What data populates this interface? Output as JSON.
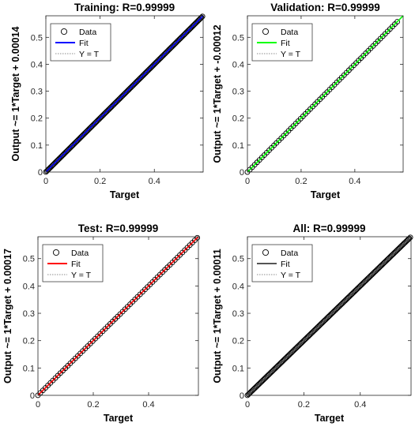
{
  "chart_data": [
    {
      "type": "scatter",
      "title": "Training: R=0.99999",
      "xlabel": "Target",
      "ylabel": "Output ~= 1*Target + 0.00014",
      "xlim": [
        0,
        0.58
      ],
      "ylim": [
        0,
        0.58
      ],
      "xticks": [
        "0",
        "0.2",
        "0.4"
      ],
      "yticks": [
        "0",
        "0.1",
        "0.2",
        "0.3",
        "0.4",
        "0.5"
      ],
      "fit": {
        "slope": 1,
        "intercept": 0.00014
      },
      "data_range": [
        0,
        0.58
      ],
      "fit_color": "#0000ff",
      "legend": [
        "Data",
        "Fit",
        "Y = T"
      ],
      "legend_position": "top-left",
      "data_marker": "open circle",
      "data_density": "dense"
    },
    {
      "type": "scatter",
      "title": "Validation: R=0.99999",
      "xlabel": "Target",
      "ylabel": "Output ~= 1*Target + -0.00012",
      "xlim": [
        0,
        0.58
      ],
      "ylim": [
        0,
        0.58
      ],
      "xticks": [
        "0",
        "0.2",
        "0.4"
      ],
      "yticks": [
        "0",
        "0.1",
        "0.2",
        "0.3",
        "0.4",
        "0.5"
      ],
      "fit": {
        "slope": 1,
        "intercept": -0.00012
      },
      "data_range": [
        0,
        0.56
      ],
      "fit_color": "#00ff00",
      "legend": [
        "Data",
        "Fit",
        "Y = T"
      ],
      "legend_position": "top-left",
      "data_marker": "open circle",
      "data_density": "medium"
    },
    {
      "type": "scatter",
      "title": "Test: R=0.99999",
      "xlabel": "Target",
      "ylabel": "Output ~= 1*Target + 0.00017",
      "xlim": [
        0,
        0.58
      ],
      "ylim": [
        0,
        0.58
      ],
      "xticks": [
        "0",
        "0.2",
        "0.4"
      ],
      "yticks": [
        "0",
        "0.1",
        "0.2",
        "0.3",
        "0.4",
        "0.5"
      ],
      "fit": {
        "slope": 1,
        "intercept": 0.00017
      },
      "data_range": [
        0,
        0.58
      ],
      "fit_color": "#ff0000",
      "legend": [
        "Data",
        "Fit",
        "Y = T"
      ],
      "legend_position": "top-left",
      "data_marker": "open circle",
      "data_density": "medium"
    },
    {
      "type": "scatter",
      "title": "All: R=0.99999",
      "xlabel": "Target",
      "ylabel": "Output ~= 1*Target + 0.00011",
      "xlim": [
        0,
        0.58
      ],
      "ylim": [
        0,
        0.58
      ],
      "xticks": [
        "0",
        "0.2",
        "0.4"
      ],
      "yticks": [
        "0",
        "0.1",
        "0.2",
        "0.3",
        "0.4",
        "0.5"
      ],
      "fit": {
        "slope": 1,
        "intercept": 0.00011
      },
      "data_range": [
        0,
        0.58
      ],
      "fit_color": "#555555",
      "legend": [
        "Data",
        "Fit",
        "Y = T"
      ],
      "legend_position": "top-left",
      "data_marker": "open circle",
      "data_density": "dense"
    }
  ],
  "colors": {
    "data_marker": "#000000",
    "identity_line": "#8c8c8c",
    "axis": "#262626"
  }
}
